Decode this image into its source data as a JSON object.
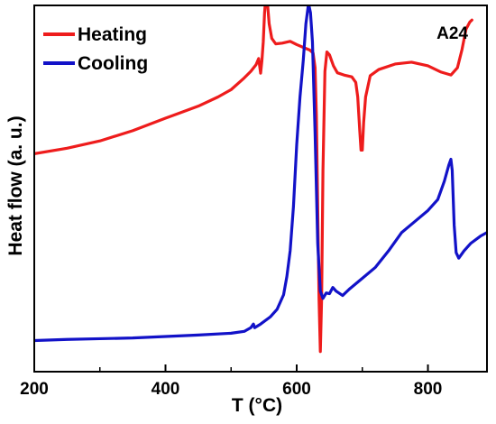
{
  "chart_data": {
    "type": "line",
    "xlabel": "T (°C)",
    "ylabel": "Heat flow (a. u.)",
    "annotation": "A24",
    "xlim": [
      200,
      890
    ],
    "ylim": [
      0,
      100
    ],
    "x_ticks": [
      "200",
      "400",
      "600",
      "800"
    ],
    "y_ticks_shown": false,
    "legend_position": "top-left",
    "series": [
      {
        "name": "Heating",
        "color": "#ee1c1c",
        "points": [
          [
            200,
            59.5
          ],
          [
            250,
            61.0
          ],
          [
            300,
            63.0
          ],
          [
            350,
            65.8
          ],
          [
            400,
            69.2
          ],
          [
            450,
            72.5
          ],
          [
            480,
            75.0
          ],
          [
            500,
            77.0
          ],
          [
            520,
            80.2
          ],
          [
            530,
            82.0
          ],
          [
            538,
            83.8
          ],
          [
            542,
            85.5
          ],
          [
            545,
            81.5
          ],
          [
            547,
            85.0
          ],
          [
            549,
            90.0
          ],
          [
            551,
            98.0
          ],
          [
            553,
            102.5
          ],
          [
            555,
            101.5
          ],
          [
            558,
            95.0
          ],
          [
            562,
            91.0
          ],
          [
            568,
            89.5
          ],
          [
            578,
            89.7
          ],
          [
            590,
            90.2
          ],
          [
            600,
            89.3
          ],
          [
            612,
            88.4
          ],
          [
            620,
            87.8
          ],
          [
            625,
            87.0
          ],
          [
            628,
            83.0
          ],
          [
            630,
            70.0
          ],
          [
            632,
            45.0
          ],
          [
            634,
            20.0
          ],
          [
            636,
            5.5
          ],
          [
            638,
            20.0
          ],
          [
            640,
            55.0
          ],
          [
            643,
            82.0
          ],
          [
            646,
            87.3
          ],
          [
            650,
            86.5
          ],
          [
            656,
            83.5
          ],
          [
            662,
            81.6
          ],
          [
            672,
            81.0
          ],
          [
            684,
            80.5
          ],
          [
            690,
            79.0
          ],
          [
            693,
            75.0
          ],
          [
            696,
            66.0
          ],
          [
            698,
            60.5
          ],
          [
            700,
            60.5
          ],
          [
            702,
            68.0
          ],
          [
            705,
            75.0
          ],
          [
            712,
            80.8
          ],
          [
            725,
            82.5
          ],
          [
            750,
            84.0
          ],
          [
            775,
            84.5
          ],
          [
            800,
            83.5
          ],
          [
            820,
            81.8
          ],
          [
            835,
            81.0
          ],
          [
            845,
            83.0
          ],
          [
            852,
            88.0
          ],
          [
            858,
            93.5
          ],
          [
            864,
            95.5
          ],
          [
            867,
            96.0
          ]
        ]
      },
      {
        "name": "Cooling",
        "color": "#1212c8",
        "points": [
          [
            200,
            8.5
          ],
          [
            250,
            8.8
          ],
          [
            300,
            9.0
          ],
          [
            350,
            9.2
          ],
          [
            400,
            9.6
          ],
          [
            450,
            10.0
          ],
          [
            500,
            10.5
          ],
          [
            520,
            11.0
          ],
          [
            530,
            12.0
          ],
          [
            534,
            13.0
          ],
          [
            536,
            12.0
          ],
          [
            545,
            13.0
          ],
          [
            560,
            15.0
          ],
          [
            570,
            17.0
          ],
          [
            580,
            21.0
          ],
          [
            585,
            26.0
          ],
          [
            590,
            33.0
          ],
          [
            595,
            45.0
          ],
          [
            600,
            62.0
          ],
          [
            605,
            75.0
          ],
          [
            610,
            85.0
          ],
          [
            614,
            95.0
          ],
          [
            618,
            100.5
          ],
          [
            621,
            98.0
          ],
          [
            624,
            90.0
          ],
          [
            628,
            65.0
          ],
          [
            632,
            35.0
          ],
          [
            636,
            22.0
          ],
          [
            640,
            20.0
          ],
          [
            645,
            21.5
          ],
          [
            650,
            21.3
          ],
          [
            655,
            23.0
          ],
          [
            660,
            22.0
          ],
          [
            670,
            20.8
          ],
          [
            680,
            22.5
          ],
          [
            700,
            25.5
          ],
          [
            720,
            28.5
          ],
          [
            740,
            33.0
          ],
          [
            760,
            38.0
          ],
          [
            780,
            41.0
          ],
          [
            800,
            44.0
          ],
          [
            815,
            47.0
          ],
          [
            825,
            52.0
          ],
          [
            832,
            56.5
          ],
          [
            835,
            58.0
          ],
          [
            837,
            55.0
          ],
          [
            840,
            40.0
          ],
          [
            843,
            32.5
          ],
          [
            847,
            31.0
          ],
          [
            855,
            33.0
          ],
          [
            865,
            35.0
          ],
          [
            880,
            37.0
          ],
          [
            890,
            38.0
          ]
        ]
      }
    ]
  }
}
